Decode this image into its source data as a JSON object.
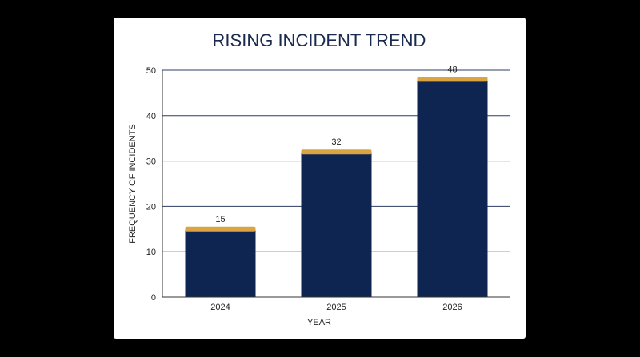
{
  "colors": {
    "background": "#000000",
    "card": "#ffffff",
    "bar_fill": "#0d2550",
    "bar_cap": "#d9a441",
    "grid": "#2e3d63",
    "title": "#1a2a4f"
  },
  "chart_data": {
    "type": "bar",
    "title": "RISING INCIDENT TREND",
    "xlabel": "YEAR",
    "ylabel": "FREQUENCY OF INCIDENTS",
    "categories": [
      "2024",
      "2025",
      "2026"
    ],
    "values": [
      15,
      32,
      48
    ],
    "data_labels": [
      "15",
      "32",
      "48"
    ],
    "ylim": [
      0,
      50
    ],
    "yticks": [
      "0",
      "10",
      "20",
      "30",
      "40",
      "50"
    ],
    "grid": true,
    "legend": "none"
  }
}
